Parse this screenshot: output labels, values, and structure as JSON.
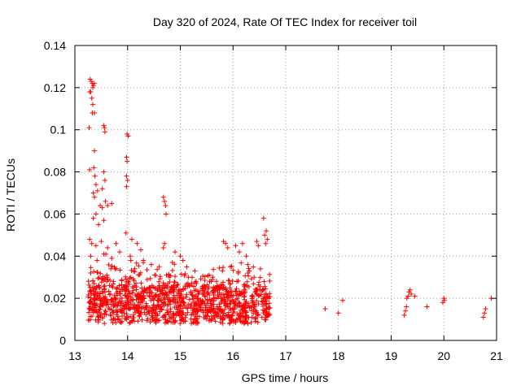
{
  "chart_data": {
    "type": "scatter",
    "title": "Day 320 of 2024, Rate Of TEC Index for receiver toil",
    "xlabel": "GPS time / hours",
    "ylabel": "ROTI / TECUs",
    "xlim": [
      13,
      21
    ],
    "ylim": [
      0,
      0.14
    ],
    "grid": true,
    "marker": "plus",
    "color": "#ff0000",
    "x_ticks": [
      "13",
      "14",
      "15",
      "16",
      "17",
      "18",
      "19",
      "20",
      "21"
    ],
    "y_ticks": [
      "0",
      "0.02",
      "0.04",
      "0.06",
      "0.08",
      "0.1",
      "0.12",
      "0.14"
    ],
    "series": [
      {
        "name": "ROTI",
        "points": [
          [
            13.29,
            0.124
          ],
          [
            13.31,
            0.123
          ],
          [
            13.33,
            0.122
          ],
          [
            13.35,
            0.121
          ],
          [
            13.37,
            0.122
          ],
          [
            13.3,
            0.118
          ],
          [
            13.28,
            0.118
          ],
          [
            13.32,
            0.115
          ],
          [
            13.34,
            0.112
          ],
          [
            13.33,
            0.108
          ],
          [
            13.37,
            0.108
          ],
          [
            13.34,
            0.12
          ],
          [
            13.27,
            0.101
          ],
          [
            13.28,
            0.081
          ],
          [
            13.55,
            0.102
          ],
          [
            13.57,
            0.099
          ],
          [
            13.56,
            0.101
          ],
          [
            13.99,
            0.098
          ],
          [
            14.01,
            0.097
          ],
          [
            13.37,
            0.09
          ],
          [
            13.98,
            0.087
          ],
          [
            13.99,
            0.085
          ],
          [
            13.98,
            0.078
          ],
          [
            14.0,
            0.076
          ],
          [
            13.98,
            0.073
          ],
          [
            13.55,
            0.08
          ],
          [
            13.57,
            0.076
          ],
          [
            13.36,
            0.082
          ],
          [
            13.38,
            0.078
          ],
          [
            13.4,
            0.074
          ],
          [
            13.35,
            0.07
          ],
          [
            13.37,
            0.068
          ],
          [
            13.43,
            0.071
          ],
          [
            13.52,
            0.072
          ],
          [
            13.58,
            0.066
          ],
          [
            13.7,
            0.065
          ],
          [
            13.62,
            0.064
          ],
          [
            13.48,
            0.064
          ],
          [
            13.52,
            0.063
          ],
          [
            13.4,
            0.06
          ],
          [
            13.35,
            0.058
          ],
          [
            13.55,
            0.057
          ],
          [
            13.45,
            0.055
          ],
          [
            14.68,
            0.068
          ],
          [
            14.7,
            0.066
          ],
          [
            14.72,
            0.064
          ],
          [
            14.73,
            0.06
          ],
          [
            16.58,
            0.058
          ],
          [
            16.6,
            0.05
          ],
          [
            16.63,
            0.052
          ],
          [
            16.65,
            0.048
          ],
          [
            16.62,
            0.046
          ],
          [
            16.45,
            0.047
          ],
          [
            16.48,
            0.045
          ],
          [
            15.82,
            0.047
          ],
          [
            15.86,
            0.046
          ],
          [
            15.9,
            0.044
          ],
          [
            16.05,
            0.045
          ],
          [
            16.12,
            0.042
          ],
          [
            16.18,
            0.046
          ],
          [
            16.25,
            0.04
          ],
          [
            14.7,
            0.046
          ],
          [
            14.68,
            0.044
          ],
          [
            14.9,
            0.042
          ],
          [
            15.0,
            0.04
          ],
          [
            15.05,
            0.038
          ],
          [
            13.28,
            0.048
          ],
          [
            13.32,
            0.046
          ],
          [
            13.4,
            0.045
          ],
          [
            13.5,
            0.047
          ],
          [
            13.62,
            0.044
          ],
          [
            13.78,
            0.046
          ],
          [
            13.97,
            0.051
          ],
          [
            14.08,
            0.048
          ],
          [
            14.18,
            0.046
          ],
          [
            14.25,
            0.043
          ],
          [
            13.3,
            0.04
          ],
          [
            13.42,
            0.038
          ],
          [
            13.55,
            0.041
          ],
          [
            13.7,
            0.039
          ],
          [
            13.85,
            0.042
          ],
          [
            14.05,
            0.04
          ],
          [
            14.3,
            0.038
          ],
          [
            14.45,
            0.036
          ],
          [
            14.6,
            0.035
          ],
          [
            14.85,
            0.037
          ],
          [
            15.3,
            0.028
          ],
          [
            15.45,
            0.026
          ],
          [
            15.55,
            0.031
          ],
          [
            15.68,
            0.025
          ],
          [
            15.8,
            0.033
          ],
          [
            15.95,
            0.035
          ],
          [
            16.1,
            0.032
          ],
          [
            16.28,
            0.036
          ],
          [
            16.4,
            0.03
          ],
          [
            16.52,
            0.034
          ],
          [
            17.75,
            0.015
          ],
          [
            18.0,
            0.013
          ],
          [
            18.08,
            0.019
          ],
          [
            19.25,
            0.012
          ],
          [
            19.27,
            0.014
          ],
          [
            19.29,
            0.016
          ],
          [
            19.3,
            0.02
          ],
          [
            19.32,
            0.021
          ],
          [
            19.34,
            0.023
          ],
          [
            19.36,
            0.024
          ],
          [
            19.38,
            0.022
          ],
          [
            19.45,
            0.021
          ],
          [
            19.68,
            0.016
          ],
          [
            19.98,
            0.018
          ],
          [
            20.0,
            0.02
          ],
          [
            20.01,
            0.019
          ],
          [
            20.75,
            0.011
          ],
          [
            20.77,
            0.013
          ],
          [
            20.79,
            0.015
          ],
          [
            20.9,
            0.02
          ]
        ]
      }
    ]
  }
}
